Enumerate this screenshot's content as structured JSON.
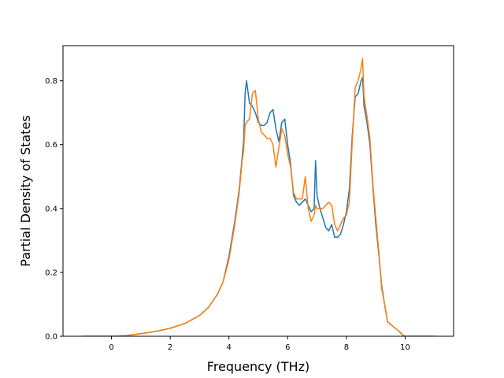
{
  "chart_data": {
    "type": "line",
    "title": "",
    "xlabel": "Frequency (THz)",
    "ylabel": "Partial Density of States",
    "xlim": [
      -1.65,
      11.65
    ],
    "ylim": [
      0.0,
      0.91
    ],
    "xticks": [
      0,
      2,
      4,
      6,
      8,
      10
    ],
    "xtick_labels": [
      "0",
      "2",
      "4",
      "6",
      "8",
      "10"
    ],
    "yticks": [
      0.0,
      0.2,
      0.4,
      0.6,
      0.8
    ],
    "ytick_labels": [
      "0.0",
      "0.2",
      "0.4",
      "0.6",
      "0.8"
    ],
    "grid": false,
    "legend": "none",
    "series": [
      {
        "color": "#1f77b4",
        "x": [
          -1.0,
          0.0,
          0.5,
          1.0,
          1.5,
          2.0,
          2.5,
          3.0,
          3.3,
          3.6,
          3.8,
          4.0,
          4.2,
          4.35,
          4.45,
          4.5,
          4.55,
          4.6,
          4.7,
          4.8,
          4.9,
          5.0,
          5.1,
          5.2,
          5.3,
          5.4,
          5.5,
          5.6,
          5.7,
          5.8,
          5.9,
          6.0,
          6.1,
          6.2,
          6.3,
          6.4,
          6.5,
          6.6,
          6.7,
          6.8,
          6.9,
          6.95,
          7.0,
          7.1,
          7.2,
          7.3,
          7.4,
          7.5,
          7.6,
          7.7,
          7.8,
          7.9,
          8.0,
          8.1,
          8.2,
          8.3,
          8.4,
          8.5,
          8.55,
          8.6,
          8.7,
          8.8,
          8.9,
          9.0,
          9.1,
          9.2,
          9.3,
          9.4,
          9.6,
          9.8,
          9.9,
          10.0,
          10.5,
          11.0
        ],
        "y": [
          0.0,
          0.0,
          0.002,
          0.008,
          0.015,
          0.025,
          0.04,
          0.065,
          0.09,
          0.13,
          0.17,
          0.25,
          0.36,
          0.46,
          0.56,
          0.61,
          0.76,
          0.8,
          0.73,
          0.72,
          0.7,
          0.67,
          0.66,
          0.66,
          0.67,
          0.7,
          0.71,
          0.65,
          0.61,
          0.67,
          0.68,
          0.6,
          0.54,
          0.44,
          0.42,
          0.41,
          0.42,
          0.43,
          0.41,
          0.39,
          0.4,
          0.55,
          0.44,
          0.4,
          0.37,
          0.34,
          0.33,
          0.35,
          0.31,
          0.31,
          0.32,
          0.35,
          0.39,
          0.46,
          0.63,
          0.75,
          0.76,
          0.8,
          0.81,
          0.72,
          0.67,
          0.6,
          0.47,
          0.35,
          0.26,
          0.16,
          0.1,
          0.045,
          0.03,
          0.015,
          0.005,
          0.0,
          0.0,
          0.0
        ]
      },
      {
        "color": "#ff7f0e",
        "x": [
          -1.0,
          0.0,
          0.5,
          1.0,
          1.5,
          2.0,
          2.5,
          3.0,
          3.3,
          3.6,
          3.8,
          4.0,
          4.2,
          4.35,
          4.45,
          4.5,
          4.55,
          4.6,
          4.7,
          4.8,
          4.9,
          5.0,
          5.1,
          5.2,
          5.3,
          5.4,
          5.5,
          5.6,
          5.7,
          5.8,
          5.9,
          6.0,
          6.1,
          6.2,
          6.3,
          6.4,
          6.5,
          6.6,
          6.7,
          6.8,
          6.9,
          6.95,
          7.0,
          7.1,
          7.2,
          7.3,
          7.4,
          7.5,
          7.6,
          7.7,
          7.8,
          7.9,
          8.0,
          8.1,
          8.2,
          8.3,
          8.4,
          8.5,
          8.55,
          8.6,
          8.7,
          8.8,
          8.9,
          9.0,
          9.1,
          9.2,
          9.3,
          9.4,
          9.6,
          9.8,
          9.9,
          10.0,
          10.5,
          11.0
        ],
        "y": [
          0.0,
          0.0,
          0.002,
          0.008,
          0.015,
          0.025,
          0.04,
          0.065,
          0.09,
          0.13,
          0.17,
          0.24,
          0.35,
          0.45,
          0.55,
          0.58,
          0.66,
          0.67,
          0.68,
          0.76,
          0.77,
          0.68,
          0.64,
          0.63,
          0.62,
          0.62,
          0.6,
          0.53,
          0.59,
          0.65,
          0.63,
          0.57,
          0.53,
          0.45,
          0.43,
          0.43,
          0.43,
          0.5,
          0.4,
          0.36,
          0.38,
          0.41,
          0.4,
          0.4,
          0.4,
          0.41,
          0.42,
          0.41,
          0.35,
          0.33,
          0.35,
          0.37,
          0.38,
          0.42,
          0.61,
          0.78,
          0.8,
          0.84,
          0.87,
          0.75,
          0.69,
          0.62,
          0.48,
          0.37,
          0.27,
          0.15,
          0.1,
          0.045,
          0.03,
          0.015,
          0.005,
          0.0,
          0.0,
          0.0
        ]
      }
    ]
  }
}
